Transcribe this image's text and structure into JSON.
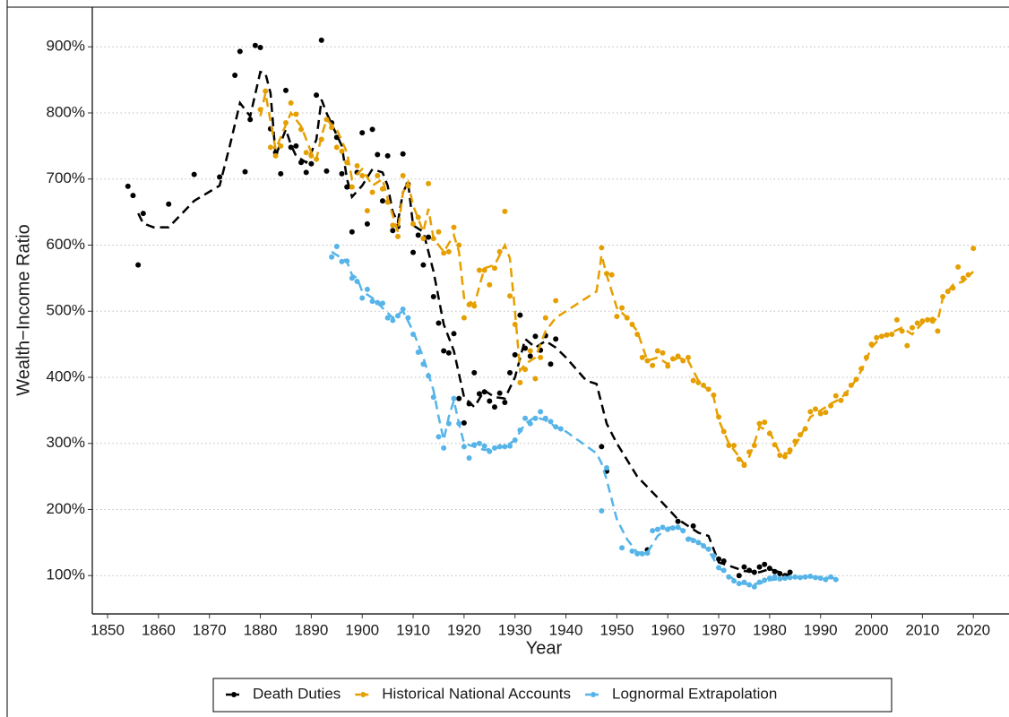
{
  "chart_data": {
    "type": "scatter-trend",
    "x_label": "Year",
    "y_label": "Wealth−Income Ratio",
    "xlim": [
      1847,
      2027
    ],
    "ylim": [
      42,
      960
    ],
    "xticks": [
      1850,
      1860,
      1870,
      1880,
      1890,
      1900,
      1910,
      1920,
      1930,
      1940,
      1950,
      1960,
      1970,
      1980,
      1990,
      2000,
      2010,
      2020
    ],
    "yticks": [
      {
        "value": 100,
        "label": "100%"
      },
      {
        "value": 200,
        "label": "200%"
      },
      {
        "value": 300,
        "label": "300%"
      },
      {
        "value": 400,
        "label": "400%"
      },
      {
        "value": 500,
        "label": "500%"
      },
      {
        "value": 600,
        "label": "600%"
      },
      {
        "value": 700,
        "label": "700%"
      },
      {
        "value": 800,
        "label": "800%"
      },
      {
        "value": 900,
        "label": "900%"
      }
    ],
    "grid": true,
    "legend": "bottom",
    "series": [
      {
        "name": "Death Duties",
        "color": "#000000",
        "x": [
          1854,
          1855,
          1856,
          1857,
          1862,
          1867,
          1872,
          1875,
          1876,
          1877,
          1878,
          1879,
          1880,
          1882,
          1883,
          1884,
          1885,
          1886,
          1887,
          1888,
          1889,
          1890,
          1891,
          1892,
          1893,
          1894,
          1895,
          1896,
          1897,
          1898,
          1899,
          1900,
          1901,
          1902,
          1903,
          1904,
          1905,
          1906,
          1907,
          1908,
          1909,
          1910,
          1911,
          1912,
          1913,
          1914,
          1915,
          1916,
          1917,
          1918,
          1919,
          1920,
          1921,
          1922,
          1923,
          1924,
          1925,
          1926,
          1927,
          1928,
          1929,
          1930,
          1931,
          1932,
          1933,
          1934,
          1935,
          1936,
          1937,
          1938,
          1947,
          1948,
          1956,
          1962,
          1965,
          1970,
          1971,
          1974,
          1975,
          1976,
          1977,
          1978,
          1979,
          1980,
          1981,
          1982,
          1983,
          1984
        ],
        "values": [
          689,
          675,
          570,
          648,
          662,
          707,
          703,
          857,
          893,
          711,
          790,
          902,
          899,
          776,
          740,
          708,
          834,
          748,
          750,
          725,
          710,
          723,
          827,
          910,
          712,
          785,
          763,
          708,
          688,
          620,
          710,
          770,
          632,
          775,
          737,
          667,
          735,
          622,
          628,
          738,
          692,
          589,
          615,
          570,
          612,
          522,
          482,
          440,
          437,
          466,
          368,
          331,
          360,
          407,
          375,
          378,
          364,
          355,
          376,
          362,
          407,
          434,
          494,
          444,
          432,
          462,
          441,
          463,
          420,
          458,
          295,
          258,
          139,
          182,
          175,
          125,
          122,
          100,
          113,
          108,
          105,
          113,
          117,
          111,
          106,
          103,
          100,
          105
        ],
        "trend_x": [
          1856,
          1857,
          1859,
          1862,
          1867,
          1872,
          1874,
          1876,
          1878,
          1880,
          1881,
          1882,
          1883,
          1885,
          1886,
          1887,
          1889,
          1890,
          1891,
          1892,
          1893,
          1894,
          1896,
          1897,
          1898,
          1900,
          1902,
          1904,
          1905,
          1906,
          1907,
          1908,
          1909,
          1910,
          1912,
          1914,
          1916,
          1918,
          1920,
          1922,
          1924,
          1926,
          1928,
          1930,
          1932,
          1934,
          1936,
          1938,
          1940,
          1944,
          1946,
          1948,
          1950,
          1954,
          1958,
          1962,
          1966,
          1968,
          1970,
          1972,
          1975,
          1978,
          1980,
          1984
        ],
        "trend": [
          648,
          633,
          627,
          627,
          667,
          690,
          750,
          815,
          795,
          862,
          860,
          830,
          735,
          775,
          752,
          735,
          725,
          740,
          760,
          820,
          800,
          783,
          750,
          700,
          673,
          690,
          715,
          710,
          690,
          650,
          635,
          680,
          695,
          630,
          620,
          560,
          480,
          440,
          370,
          355,
          380,
          370,
          368,
          400,
          458,
          445,
          455,
          445,
          430,
          395,
          390,
          330,
          300,
          250,
          218,
          185,
          165,
          160,
          120,
          115,
          107,
          105,
          110,
          100
        ]
      },
      {
        "name": "Historical National Accounts",
        "color": "#E69F00",
        "x": [
          1880,
          1881,
          1882,
          1883,
          1884,
          1885,
          1886,
          1887,
          1888,
          1889,
          1890,
          1891,
          1892,
          1893,
          1894,
          1895,
          1896,
          1897,
          1898,
          1899,
          1900,
          1901,
          1902,
          1903,
          1904,
          1905,
          1906,
          1907,
          1908,
          1909,
          1910,
          1911,
          1912,
          1913,
          1914,
          1915,
          1916,
          1917,
          1918,
          1919,
          1920,
          1921,
          1922,
          1923,
          1924,
          1925,
          1926,
          1927,
          1928,
          1929,
          1930,
          1931,
          1932,
          1933,
          1934,
          1935,
          1936,
          1938,
          1947,
          1948,
          1949,
          1950,
          1951,
          1952,
          1953,
          1954,
          1955,
          1956,
          1957,
          1958,
          1959,
          1960,
          1961,
          1962,
          1963,
          1964,
          1965,
          1966,
          1967,
          1968,
          1969,
          1970,
          1971,
          1972,
          1973,
          1974,
          1975,
          1976,
          1977,
          1978,
          1979,
          1980,
          1981,
          1982,
          1983,
          1984,
          1985,
          1986,
          1987,
          1988,
          1989,
          1990,
          1991,
          1992,
          1993,
          1994,
          1995,
          1996,
          1997,
          1998,
          1999,
          2000,
          2001,
          2002,
          2003,
          2004,
          2005,
          2006,
          2007,
          2008,
          2009,
          2010,
          2011,
          2012,
          2013,
          2014,
          2015,
          2016,
          2017,
          2018,
          2019,
          2020
        ],
        "values": [
          805,
          833,
          748,
          735,
          750,
          785,
          815,
          798,
          775,
          740,
          735,
          730,
          760,
          790,
          778,
          748,
          742,
          725,
          688,
          720,
          705,
          652,
          680,
          705,
          685,
          665,
          630,
          613,
          705,
          690,
          632,
          642,
          610,
          693,
          610,
          620,
          588,
          590,
          627,
          600,
          490,
          510,
          508,
          562,
          562,
          540,
          565,
          590,
          651,
          523,
          480,
          392,
          412,
          440,
          398,
          430,
          490,
          516,
          596,
          557,
          555,
          492,
          505,
          490,
          480,
          465,
          430,
          425,
          418,
          440,
          437,
          417,
          428,
          432,
          425,
          430,
          395,
          392,
          388,
          382,
          373,
          340,
          318,
          297,
          297,
          276,
          267,
          287,
          297,
          330,
          332,
          315,
          298,
          282,
          280,
          290,
          303,
          313,
          322,
          348,
          352,
          345,
          347,
          357,
          372,
          365,
          375,
          388,
          397,
          413,
          430,
          450,
          460,
          462,
          464,
          465,
          487,
          470,
          448,
          475,
          482,
          485,
          487,
          485,
          470,
          522,
          530,
          535,
          567,
          550,
          555,
          595
        ],
        "trend_x": [
          1880,
          1881,
          1883,
          1886,
          1888,
          1890,
          1891,
          1892,
          1893,
          1895,
          1897,
          1898,
          1900,
          1902,
          1904,
          1905,
          1906,
          1907,
          1908,
          1909,
          1910,
          1912,
          1913,
          1914,
          1916,
          1918,
          1919,
          1920,
          1922,
          1924,
          1926,
          1928,
          1929,
          1930,
          1931,
          1932,
          1934,
          1936,
          1938,
          1946,
          1947,
          1948,
          1950,
          1952,
          1954,
          1956,
          1958,
          1960,
          1962,
          1964,
          1966,
          1968,
          1969,
          1970,
          1972,
          1974,
          1975,
          1976,
          1977,
          1978,
          1980,
          1982,
          1984,
          1986,
          1988,
          1990,
          1992,
          1994,
          1996,
          1998,
          2000,
          2002,
          2004,
          2006,
          2008,
          2010,
          2012,
          2013,
          2014,
          2016,
          2018,
          2020
        ],
        "trend": [
          795,
          830,
          745,
          800,
          780,
          740,
          730,
          765,
          790,
          775,
          740,
          700,
          715,
          690,
          700,
          670,
          645,
          620,
          680,
          695,
          660,
          620,
          655,
          610,
          590,
          615,
          590,
          520,
          510,
          565,
          570,
          600,
          580,
          500,
          410,
          420,
          430,
          470,
          490,
          530,
          585,
          555,
          505,
          490,
          470,
          425,
          430,
          420,
          430,
          425,
          395,
          380,
          370,
          335,
          300,
          280,
          268,
          280,
          300,
          325,
          318,
          285,
          285,
          310,
          340,
          350,
          360,
          368,
          385,
          410,
          445,
          462,
          468,
          475,
          465,
          482,
          490,
          485,
          520,
          540,
          545,
          560
        ]
      },
      {
        "name": "Lognormal Extrapolation",
        "color": "#56B4E9",
        "x": [
          1894,
          1895,
          1896,
          1897,
          1898,
          1899,
          1900,
          1901,
          1902,
          1903,
          1904,
          1905,
          1906,
          1907,
          1908,
          1909,
          1910,
          1911,
          1912,
          1913,
          1914,
          1915,
          1916,
          1917,
          1918,
          1919,
          1920,
          1921,
          1922,
          1923,
          1924,
          1925,
          1926,
          1927,
          1928,
          1929,
          1930,
          1931,
          1932,
          1933,
          1934,
          1935,
          1936,
          1937,
          1938,
          1939,
          1947,
          1948,
          1951,
          1953,
          1954,
          1955,
          1956,
          1957,
          1958,
          1959,
          1960,
          1961,
          1962,
          1963,
          1964,
          1965,
          1966,
          1967,
          1968,
          1969,
          1970,
          1971,
          1972,
          1973,
          1974,
          1975,
          1976,
          1977,
          1978,
          1979,
          1980,
          1981,
          1982,
          1983,
          1984,
          1985,
          1986,
          1987,
          1988,
          1989,
          1990,
          1991,
          1992,
          1993
        ],
        "values": [
          582,
          598,
          575,
          576,
          550,
          545,
          520,
          533,
          515,
          513,
          512,
          490,
          486,
          493,
          503,
          490,
          465,
          438,
          420,
          402,
          370,
          310,
          293,
          330,
          368,
          330,
          295,
          278,
          298,
          300,
          296,
          288,
          293,
          295,
          295,
          296,
          305,
          320,
          338,
          330,
          338,
          348,
          338,
          333,
          325,
          322,
          198,
          263,
          142,
          137,
          133,
          133,
          134,
          168,
          170,
          173,
          170,
          172,
          173,
          168,
          155,
          153,
          150,
          145,
          140,
          130,
          112,
          108,
          98,
          92,
          88,
          90,
          86,
          83,
          90,
          93,
          96,
          98,
          95,
          96,
          97,
          98,
          97,
          98,
          99,
          97,
          96,
          94,
          98,
          94
        ],
        "trend_x": [
          1894,
          1896,
          1897,
          1898,
          1899,
          1900,
          1902,
          1904,
          1906,
          1908,
          1910,
          1912,
          1914,
          1915,
          1916,
          1917,
          1918,
          1919,
          1920,
          1922,
          1924,
          1926,
          1928,
          1930,
          1932,
          1934,
          1936,
          1938,
          1940,
          1946,
          1947,
          1948,
          1950,
          1952,
          1954,
          1956,
          1958,
          1960,
          1962,
          1964,
          1966,
          1968,
          1970,
          1972,
          1974,
          1976,
          1978,
          1980,
          1982,
          1984,
          1988,
          1993
        ],
        "trend": [
          590,
          580,
          575,
          555,
          550,
          530,
          520,
          505,
          490,
          500,
          470,
          430,
          380,
          340,
          305,
          340,
          365,
          330,
          300,
          295,
          290,
          293,
          295,
          305,
          330,
          340,
          335,
          325,
          318,
          285,
          270,
          245,
          185,
          155,
          135,
          135,
          160,
          172,
          175,
          158,
          152,
          138,
          112,
          100,
          88,
          87,
          88,
          93,
          95,
          97,
          98,
          96
        ]
      }
    ]
  }
}
